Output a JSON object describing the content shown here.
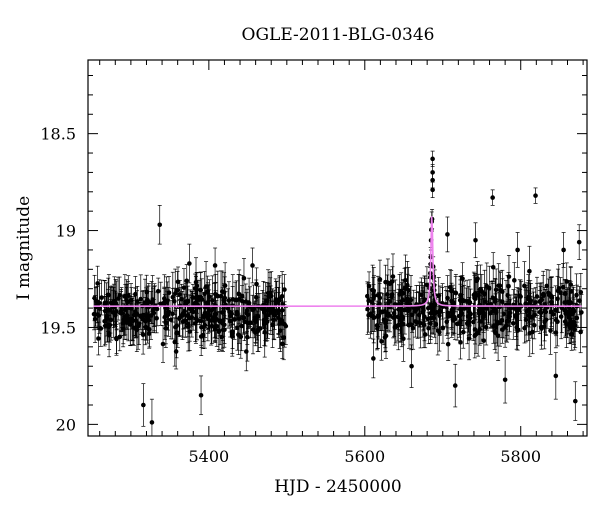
{
  "chart_data": {
    "type": "scatter",
    "title": "OGLE-2011-BLG-0346",
    "xlabel": "HJD - 2450000",
    "ylabel": "I magnitude",
    "xlim": [
      5245,
      5885
    ],
    "ylim": [
      20.06,
      18.12
    ],
    "y_inverted": true,
    "grid": false,
    "legend": "none",
    "x_ticks": [
      5400,
      5600,
      5800
    ],
    "x_tick_labels": [
      "5400",
      "5600",
      "5800"
    ],
    "y_ticks": [
      18.5,
      19,
      19.5,
      20
    ],
    "y_tick_labels": [
      "18.5",
      "19",
      "19.5",
      "20"
    ],
    "colors": {
      "points": "#000000",
      "model": "#ee82ee"
    },
    "observing_seasons": [
      {
        "start": 5252,
        "end": 5500,
        "mean_mag": 19.42,
        "scatter_mag": 0.12,
        "typical_error_mag": 0.09
      },
      {
        "start": 5602,
        "end": 5878,
        "mean_mag": 19.41,
        "scatter_mag": 0.12,
        "typical_error_mag": 0.09
      }
    ],
    "series": [
      {
        "type": "scatter",
        "points": [
          {
            "x": 5337,
            "y": 18.97,
            "err": 0.1
          },
          {
            "x": 5375,
            "y": 19.17,
            "err": 0.1
          },
          {
            "x": 5408,
            "y": 19.18,
            "err": 0.09
          },
          {
            "x": 5456,
            "y": 19.18,
            "err": 0.09
          },
          {
            "x": 5327,
            "y": 19.99,
            "err": 0.12
          },
          {
            "x": 5316,
            "y": 19.9,
            "err": 0.11
          },
          {
            "x": 5390,
            "y": 19.85,
            "err": 0.1
          },
          {
            "x": 5687,
            "y": 18.63,
            "err": 0.04
          },
          {
            "x": 5687,
            "y": 18.7,
            "err": 0.04
          },
          {
            "x": 5687,
            "y": 18.74,
            "err": 0.04
          },
          {
            "x": 5687,
            "y": 18.79,
            "err": 0.04
          },
          {
            "x": 5764,
            "y": 18.83,
            "err": 0.04
          },
          {
            "x": 5819,
            "y": 18.82,
            "err": 0.04
          },
          {
            "x": 5706,
            "y": 19.02,
            "err": 0.09
          },
          {
            "x": 5742,
            "y": 19.05,
            "err": 0.09
          },
          {
            "x": 5796,
            "y": 19.1,
            "err": 0.09
          },
          {
            "x": 5855,
            "y": 19.1,
            "err": 0.09
          },
          {
            "x": 5875,
            "y": 19.06,
            "err": 0.09
          },
          {
            "x": 5611,
            "y": 19.66,
            "err": 0.1
          },
          {
            "x": 5660,
            "y": 19.7,
            "err": 0.11
          },
          {
            "x": 5716,
            "y": 19.8,
            "err": 0.11
          },
          {
            "x": 5780,
            "y": 19.77,
            "err": 0.12
          },
          {
            "x": 5845,
            "y": 19.75,
            "err": 0.12
          },
          {
            "x": 5870,
            "y": 19.88,
            "err": 0.1
          }
        ]
      },
      {
        "type": "line",
        "baseline_mag": 19.39,
        "peak_mag": 18.91,
        "t0": 5686,
        "tE_days": 2.5,
        "x_range": [
          5252,
          5878
        ]
      }
    ]
  }
}
